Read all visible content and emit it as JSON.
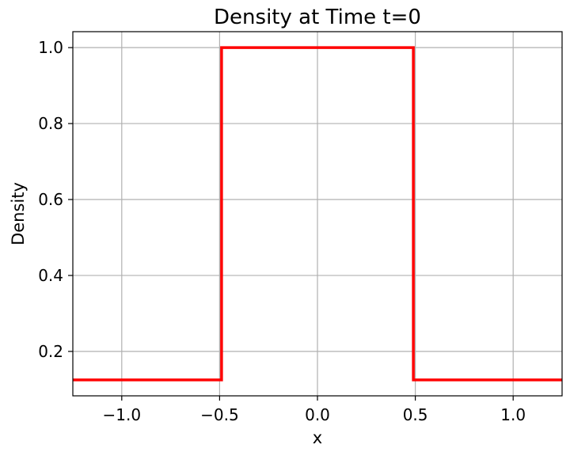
{
  "chart_data": {
    "type": "line",
    "title": "Density at Time t=0",
    "xlabel": "x",
    "ylabel": "Density",
    "xlim": [
      -1.25,
      1.25
    ],
    "ylim": [
      0.083,
      1.042
    ],
    "xticks": [
      -1.0,
      -0.5,
      0.0,
      0.5,
      1.0
    ],
    "xtick_labels": [
      "−1.0",
      "−0.5",
      "0.0",
      "0.5",
      "1.0"
    ],
    "yticks": [
      0.2,
      0.4,
      0.6,
      0.8,
      1.0
    ],
    "ytick_labels": [
      "0.2",
      "0.4",
      "0.6",
      "0.8",
      "1.0"
    ],
    "grid": true,
    "series": [
      {
        "color": "#ff0000",
        "x": [
          -1.25,
          -0.49,
          -0.49,
          0.49,
          0.49,
          1.25
        ],
        "y": [
          0.125,
          0.125,
          1.0,
          1.0,
          0.125,
          0.125
        ]
      }
    ]
  }
}
